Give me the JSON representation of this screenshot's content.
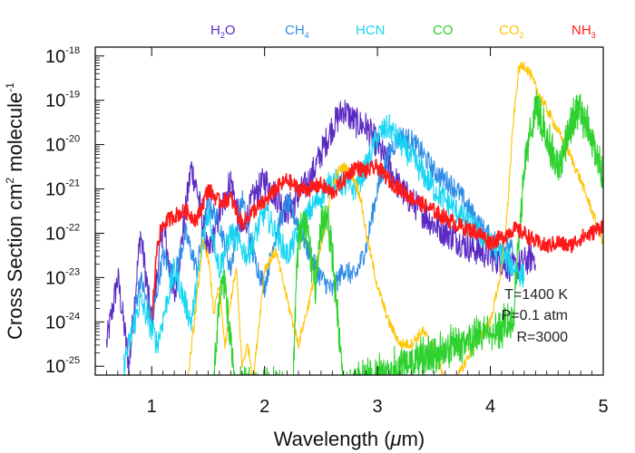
{
  "chart_data": {
    "type": "line",
    "title": "",
    "xlabel_prefix": "Wavelength (",
    "xlabel_mu": "μ",
    "xlabel_suffix": "m)",
    "ylabel_main": "Cross Section cm",
    "ylabel_sup1": "2",
    "ylabel_mid": " molecule",
    "ylabel_sup2": "-1",
    "xlim": [
      0.5,
      5.0
    ],
    "ylim_log10": [
      -25.2,
      -17.8
    ],
    "x_ticks": [
      1,
      2,
      3,
      4,
      5
    ],
    "x_tick_labels": [
      "1",
      "2",
      "3",
      "4",
      "5"
    ],
    "y_ticks": [
      {
        "base": "10",
        "exp": "-18"
      },
      {
        "base": "10",
        "exp": "-19"
      },
      {
        "base": "10",
        "exp": "-20"
      },
      {
        "base": "10",
        "exp": "-21"
      },
      {
        "base": "10",
        "exp": "-22"
      },
      {
        "base": "10",
        "exp": "-23"
      },
      {
        "base": "10",
        "exp": "-24"
      },
      {
        "base": "10",
        "exp": "-25"
      }
    ],
    "legend": [
      {
        "name": "H2O",
        "main": "H",
        "sub": "2",
        "tail": "O",
        "color": "#5b2bc4"
      },
      {
        "name": "CH4",
        "main": "CH",
        "sub": "4",
        "tail": "",
        "color": "#2e8de6"
      },
      {
        "name": "HCN",
        "main": "HCN",
        "sub": "",
        "tail": "",
        "color": "#18d6f2"
      },
      {
        "name": "CO",
        "main": "CO",
        "sub": "",
        "tail": "",
        "color": "#2ed12e"
      },
      {
        "name": "CO2",
        "main": "CO",
        "sub": "2",
        "tail": "",
        "color": "#ffc400"
      },
      {
        "name": "NH3",
        "main": "NH",
        "sub": "3",
        "tail": "",
        "color": "#ff1a1a"
      }
    ],
    "annotations": [
      "T=1400 K",
      "P=0.1 atm",
      "R=3000"
    ],
    "series": [
      {
        "name": "H2O",
        "color": "#5b2bc4",
        "noise": 0.35,
        "x": [
          0.6,
          0.7,
          0.8,
          0.9,
          1.0,
          1.1,
          1.2,
          1.3,
          1.35,
          1.4,
          1.5,
          1.6,
          1.7,
          1.8,
          1.9,
          2.0,
          2.2,
          2.4,
          2.6,
          2.7,
          2.8,
          2.9,
          3.0,
          3.2,
          3.5,
          3.8,
          4.0,
          4.2,
          4.4
        ],
        "logy": [
          -24.5,
          -23.0,
          -25.0,
          -22.0,
          -24.0,
          -21.8,
          -23.5,
          -21.5,
          -20.5,
          -21.0,
          -22.5,
          -21.6,
          -20.8,
          -22.0,
          -21.2,
          -20.8,
          -21.5,
          -20.8,
          -19.6,
          -19.2,
          -19.5,
          -19.6,
          -20.0,
          -21.0,
          -21.8,
          -22.3,
          -22.5,
          -22.8,
          -22.5
        ]
      },
      {
        "name": "CH4",
        "color": "#2e8de6",
        "noise": 0.25,
        "x": [
          0.8,
          0.9,
          1.0,
          1.1,
          1.2,
          1.3,
          1.4,
          1.5,
          1.6,
          1.7,
          1.8,
          1.9,
          2.0,
          2.1,
          2.2,
          2.3,
          2.4,
          2.5,
          2.6,
          2.7,
          2.8,
          2.9,
          3.0,
          3.1,
          3.2,
          3.3,
          3.4,
          3.5,
          3.7,
          3.8,
          3.9,
          4.0,
          4.2
        ],
        "logy": [
          -24.5,
          -23.0,
          -24.0,
          -22.5,
          -23.0,
          -22.0,
          -22.8,
          -21.3,
          -21.8,
          -22.8,
          -21.2,
          -22.5,
          -23.2,
          -22.0,
          -21.3,
          -21.8,
          -22.5,
          -23.0,
          -23.3,
          -22.8,
          -23.0,
          -22.3,
          -21.0,
          -20.2,
          -19.8,
          -19.9,
          -20.2,
          -20.6,
          -21.0,
          -21.4,
          -21.8,
          -22.1,
          -22.4
        ]
      },
      {
        "name": "HCN",
        "color": "#18d6f2",
        "noise": 0.3,
        "x": [
          0.75,
          0.9,
          1.05,
          1.2,
          1.35,
          1.5,
          1.6,
          1.7,
          1.85,
          2.0,
          2.2,
          2.4,
          2.6,
          2.8,
          2.9,
          3.0,
          3.1,
          3.3,
          3.5,
          3.7,
          3.9,
          4.1,
          4.3
        ],
        "logy": [
          -25.0,
          -23.5,
          -24.5,
          -22.8,
          -24.0,
          -21.5,
          -22.8,
          -22.0,
          -22.5,
          -21.5,
          -22.5,
          -21.5,
          -20.8,
          -21.0,
          -20.5,
          -19.8,
          -19.6,
          -20.3,
          -21.0,
          -21.5,
          -22.0,
          -22.5,
          -23.0
        ]
      },
      {
        "name": "CO",
        "color": "#2ed12e",
        "noise": 0.15,
        "dense": true,
        "x": [
          1.55,
          1.57,
          1.6,
          1.62,
          1.65,
          1.7,
          1.75,
          2.25,
          2.28,
          2.3,
          2.33,
          2.36,
          2.4,
          2.45,
          2.5,
          2.55,
          2.6,
          2.65,
          2.7,
          4.2,
          4.3,
          4.4,
          4.5,
          4.6,
          4.7,
          4.8,
          4.9,
          5.0
        ],
        "logy": [
          -25.5,
          -24.5,
          -23.5,
          -23.0,
          -23.2,
          -24.5,
          -25.5,
          -25.5,
          -23.0,
          -22.2,
          -21.8,
          -21.8,
          -22.3,
          -23.2,
          -21.8,
          -21.5,
          -22.5,
          -24.0,
          -25.5,
          -24.0,
          -20.5,
          -19.1,
          -19.8,
          -20.6,
          -19.6,
          -19.2,
          -19.9,
          -20.8
        ]
      },
      {
        "name": "CO2",
        "color": "#ffc400",
        "noise": 0.12,
        "x": [
          1.32,
          1.4,
          1.45,
          1.5,
          1.55,
          1.6,
          1.65,
          1.7,
          1.75,
          1.8,
          1.85,
          1.9,
          2.0,
          2.1,
          2.2,
          2.3,
          2.4,
          2.5,
          2.6,
          2.65,
          2.7,
          2.75,
          2.8,
          2.85,
          2.9,
          3.0,
          3.1,
          3.2,
          3.3,
          3.4,
          3.5,
          3.6,
          3.7,
          3.8,
          3.9,
          4.0,
          4.1,
          4.15,
          4.2,
          4.25,
          4.3,
          4.35,
          4.4,
          4.5,
          4.6,
          4.7,
          4.8,
          4.9,
          5.0
        ],
        "logy": [
          -25.3,
          -23.5,
          -22.2,
          -22.5,
          -23.8,
          -23.2,
          -24.6,
          -23.5,
          -22.8,
          -25.0,
          -24.5,
          -25.3,
          -22.8,
          -22.4,
          -23.5,
          -24.5,
          -23.5,
          -22.3,
          -21.0,
          -20.6,
          -20.5,
          -20.6,
          -20.8,
          -21.2,
          -22.0,
          -23.2,
          -24.0,
          -24.5,
          -24.5,
          -24.2,
          -24.6,
          -25.3,
          -25.3,
          -24.8,
          -24.3,
          -24.0,
          -22.8,
          -21.5,
          -19.6,
          -18.3,
          -18.2,
          -18.4,
          -18.7,
          -19.2,
          -19.7,
          -20.2,
          -20.8,
          -21.5,
          -22.2
        ]
      },
      {
        "name": "NH3",
        "color": "#ff1a1a",
        "noise": 0.18,
        "x": [
          1.0,
          1.05,
          1.1,
          1.2,
          1.3,
          1.4,
          1.5,
          1.6,
          1.7,
          1.8,
          1.9,
          2.0,
          2.1,
          2.2,
          2.3,
          2.4,
          2.5,
          2.6,
          2.7,
          2.8,
          2.9,
          3.0,
          3.1,
          3.2,
          3.3,
          3.5,
          3.7,
          3.9,
          4.0,
          4.1,
          4.2,
          4.3,
          4.4,
          4.5,
          4.6,
          4.7,
          4.8,
          4.9,
          5.0
        ],
        "logy": [
          -24.0,
          -22.2,
          -21.8,
          -21.6,
          -21.5,
          -21.7,
          -21.0,
          -21.3,
          -21.2,
          -21.8,
          -21.5,
          -21.3,
          -21.0,
          -20.8,
          -21.0,
          -21.0,
          -20.9,
          -21.1,
          -20.8,
          -20.5,
          -20.6,
          -20.5,
          -20.8,
          -21.0,
          -21.2,
          -21.5,
          -21.8,
          -22.0,
          -22.2,
          -22.1,
          -21.9,
          -22.0,
          -22.2,
          -22.3,
          -22.2,
          -22.3,
          -22.1,
          -22.0,
          -21.8
        ]
      }
    ]
  }
}
